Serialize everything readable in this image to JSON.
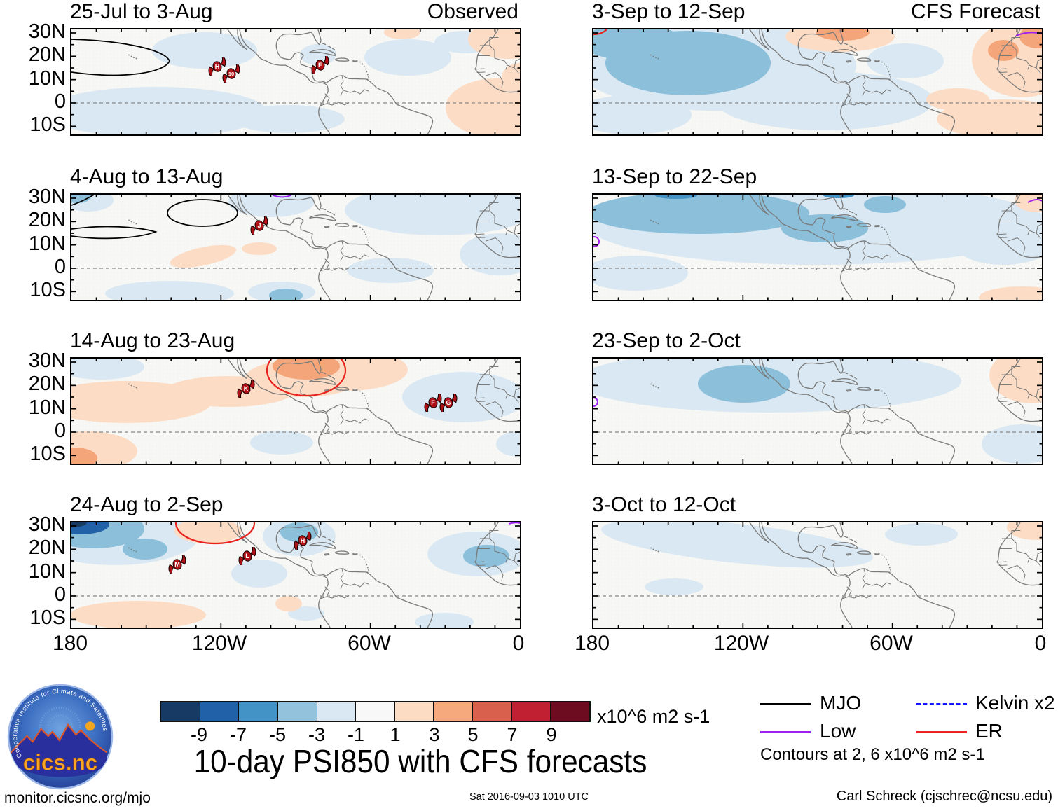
{
  "panels": [
    {
      "title": "25-Jul to 3-Aug",
      "corner": "Observed",
      "storms": [
        {
          "label": "H"
        },
        {
          "label": "10"
        },
        {
          "label": "E"
        }
      ]
    },
    {
      "title": "3-Sep to 12-Sep",
      "corner": "CFS Forecast",
      "storms": []
    },
    {
      "title": "4-Aug to 13-Aug",
      "storms": [
        {
          "label": "J"
        }
      ]
    },
    {
      "title": "13-Sep to 22-Sep",
      "storms": []
    },
    {
      "title": "14-Aug to 23-Aug",
      "storms": [
        {
          "label": "K"
        },
        {
          "label": "F"
        },
        {
          "label": "G"
        }
      ]
    },
    {
      "title": "23-Sep to 2-Oct",
      "storms": []
    },
    {
      "title": "24-Aug to 2-Sep",
      "storms": [
        {
          "label": "M"
        },
        {
          "label": "L"
        },
        {
          "label": "H"
        }
      ]
    },
    {
      "title": "3-Oct to 12-Oct",
      "storms": []
    }
  ],
  "axes": {
    "lat_ticks": [
      "30N",
      "20N",
      "10N",
      "0",
      "10S"
    ],
    "lon_ticks": [
      "180",
      "120W",
      "60W",
      "0"
    ]
  },
  "colorbar": {
    "ticks": [
      "-9",
      "-7",
      "-5",
      "-3",
      "-1",
      "1",
      "3",
      "5",
      "7",
      "9"
    ],
    "colors": [
      "#163a64",
      "#2161a8",
      "#4493c6",
      "#93c2dd",
      "#d9e8f2",
      "#f8f8f8",
      "#fddcc4",
      "#f5a97d",
      "#d8604c",
      "#c11f32",
      "#6d0b20"
    ],
    "units": "x10^6 m2 s-1"
  },
  "legend": {
    "items": [
      {
        "label": "MJO",
        "color": "#000000",
        "style": "solid"
      },
      {
        "label": "Low",
        "color": "#a020f0",
        "style": "solid"
      },
      {
        "label": "Kelvin x2",
        "color": "#1414ff",
        "style": "dashed"
      },
      {
        "label": "ER",
        "color": "#ee2222",
        "style": "solid"
      }
    ],
    "note": "Contours at 2, 6 x10^6 m2 s-1"
  },
  "title": "10-day PSI850 with CFS forecasts",
  "logo": {
    "ring_text": "Cooperative Institute for Climate and Satellites",
    "name": "cics.nc"
  },
  "footer": {
    "left": "monitor.cicsnc.org/mjo",
    "center": "Sat 2016-09-03 1010 UTC",
    "right": "Carl Schreck (cjschrec@ncsu.edu)"
  },
  "chart_data": {
    "type": "heatmap",
    "title": "10-day PSI850 with CFS forecasts",
    "units": "x10^6 m2 s-1",
    "color_levels": [
      -9,
      -7,
      -5,
      -3,
      -1,
      1,
      3,
      5,
      7,
      9
    ],
    "colors": [
      "#163a64",
      "#2161a8",
      "#4493c6",
      "#93c2dd",
      "#d9e8f2",
      "#f8f8f8",
      "#fddcc4",
      "#f5a97d",
      "#d8604c",
      "#c11f32",
      "#6d0b20"
    ],
    "lat_ticks": [
      "30N",
      "20N",
      "10N",
      "0",
      "10S"
    ],
    "lon_ticks": [
      "180",
      "120W",
      "60W",
      "0"
    ],
    "contour_legend": [
      {
        "name": "MJO",
        "color": "black",
        "line": "solid"
      },
      {
        "name": "Low",
        "color": "purple",
        "line": "solid"
      },
      {
        "name": "Kelvin x2",
        "color": "blue",
        "line": "dashed"
      },
      {
        "name": "ER",
        "color": "red",
        "line": "solid"
      }
    ],
    "contour_note": "Contours at 2, 6 x10^6 m2 s-1",
    "panels": [
      {
        "period": "25-Jul to 3-Aug",
        "source": "Observed",
        "tc_labels": [
          "H",
          "10",
          "E"
        ]
      },
      {
        "period": "4-Aug to 13-Aug",
        "source": "Observed",
        "tc_labels": [
          "J"
        ]
      },
      {
        "period": "14-Aug to 23-Aug",
        "source": "Observed",
        "tc_labels": [
          "K",
          "F",
          "G"
        ]
      },
      {
        "period": "24-Aug to 2-Sep",
        "source": "Observed",
        "tc_labels": [
          "M",
          "L",
          "H"
        ]
      },
      {
        "period": "3-Sep to 12-Sep",
        "source": "CFS Forecast",
        "tc_labels": []
      },
      {
        "period": "13-Sep to 22-Sep",
        "source": "CFS Forecast",
        "tc_labels": []
      },
      {
        "period": "23-Sep to 2-Oct",
        "source": "CFS Forecast",
        "tc_labels": []
      },
      {
        "period": "3-Oct to 12-Oct",
        "source": "CFS Forecast",
        "tc_labels": []
      }
    ]
  }
}
